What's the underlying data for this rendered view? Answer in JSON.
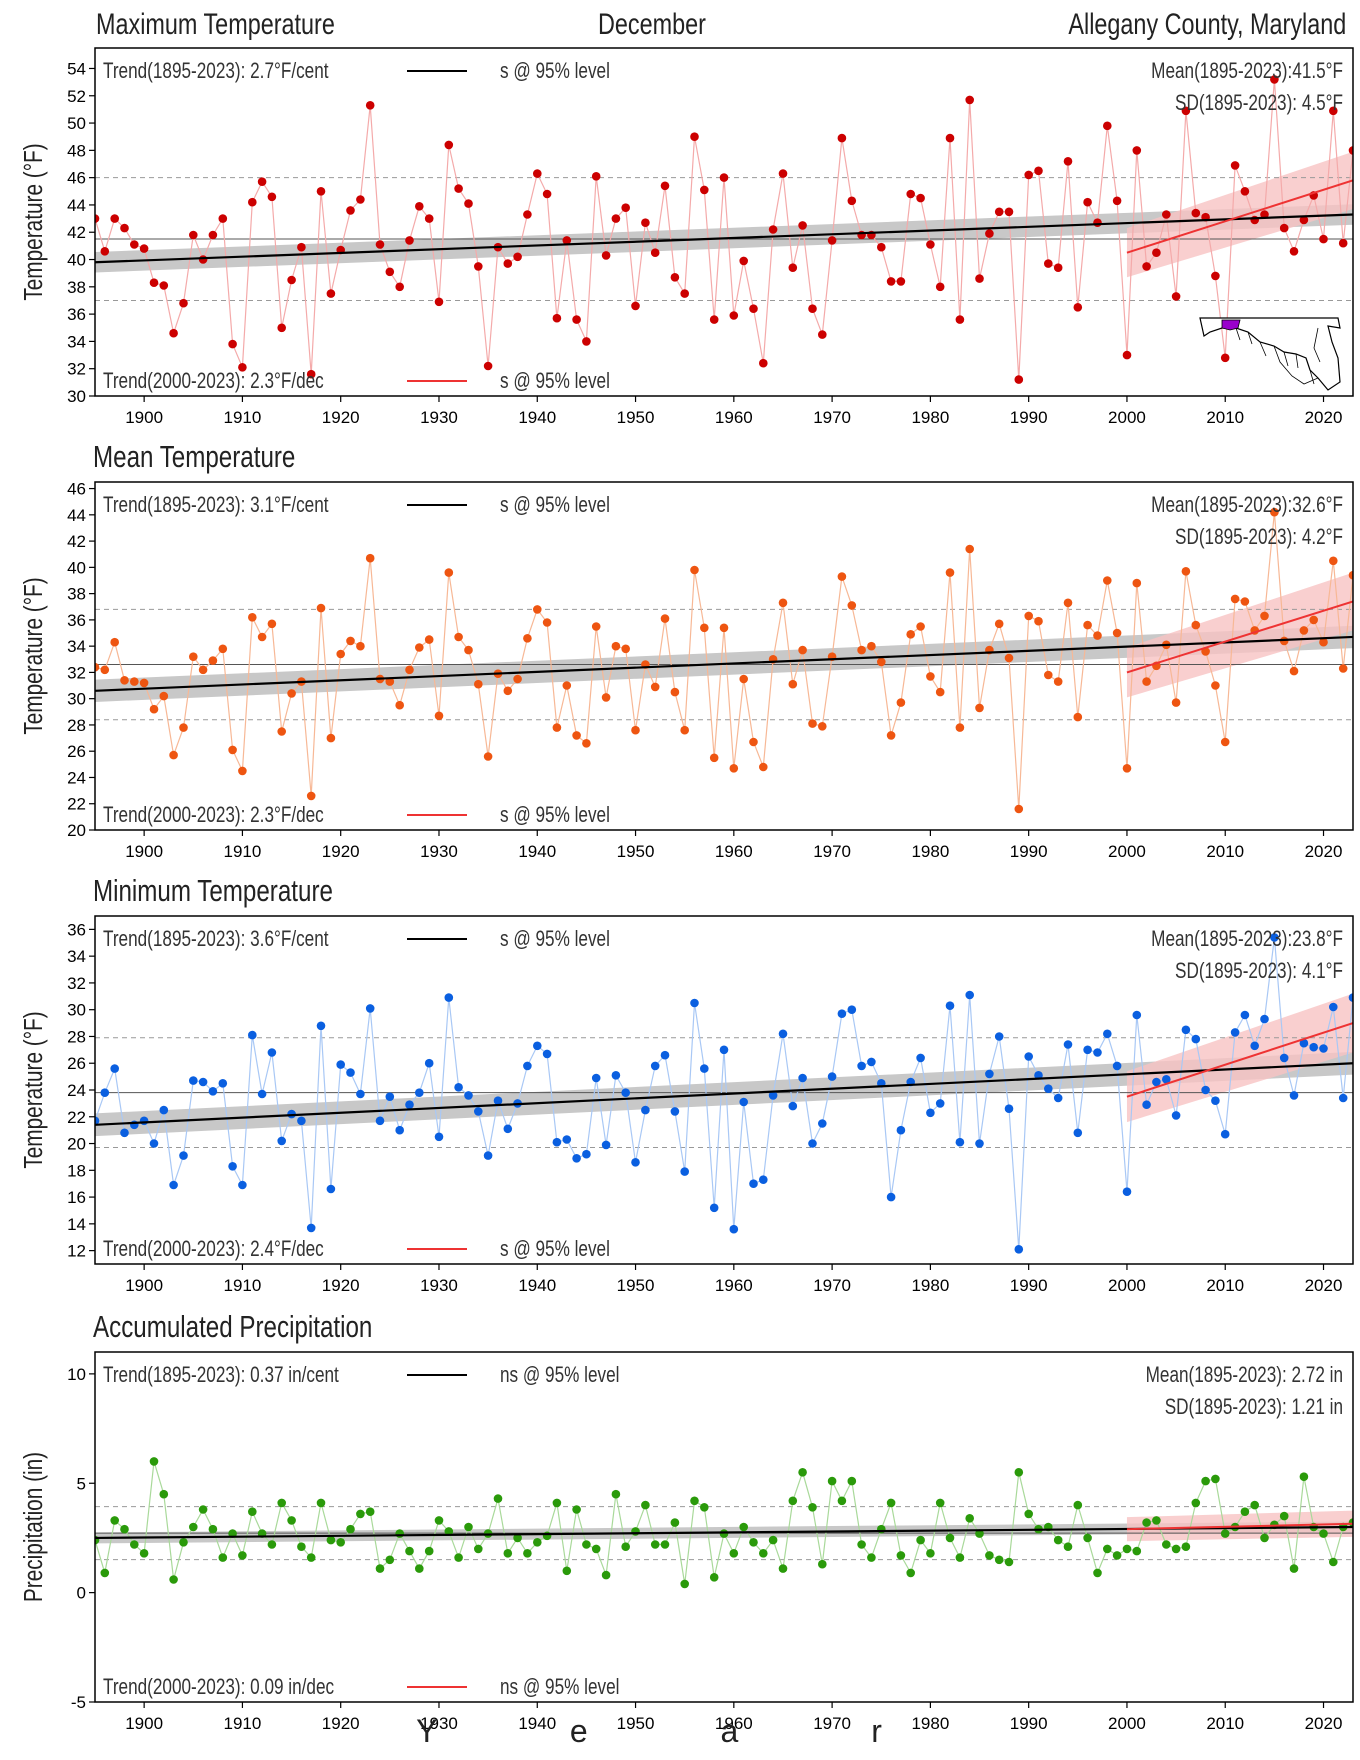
{
  "header": {
    "left": "Maximum Temperature",
    "center": "December",
    "right": "Allegany County, Maryland"
  },
  "xlabel": "Y e a r",
  "colors": {
    "max_temp": "#cc0000",
    "mean_temp": "#ee5511",
    "min_temp": "#0a5fe0",
    "precip": "#2a9a0a",
    "trend_long": "#000000",
    "trend_recent": "#ee3333",
    "band_long": "#c8c8c8",
    "band_recent": "#f7c3c3",
    "map_highlight": "#9900cc"
  },
  "chart_data": [
    {
      "type": "line",
      "title": "Maximum Temperature",
      "ylabel": "Temperature (°F)",
      "ylim": [
        30,
        55.5
      ],
      "yticks": [
        30,
        32,
        34,
        36,
        38,
        40,
        42,
        44,
        46,
        48,
        50,
        52,
        54
      ],
      "xlim": [
        1895,
        2023
      ],
      "xticks": [
        1900,
        1910,
        1920,
        1930,
        1940,
        1950,
        1960,
        1970,
        1980,
        1990,
        2000,
        2010,
        2020
      ],
      "trend_long_label": "Trend(1895-2023):  2.7°F/cent",
      "trend_long_sig": "s @ 95% level",
      "trend_recent_label": "Trend(2000-2023):  2.3°F/dec",
      "trend_recent_sig": "s @ 95% level",
      "mean_label": "Mean(1895-2023):41.5°F",
      "sd_label": "SD(1895-2023): 4.5°F",
      "mean": 41.5,
      "sd": 4.5,
      "trend_long": {
        "start": 39.8,
        "end": 43.3,
        "band": 0.75
      },
      "trend_recent": {
        "start": 40.5,
        "end": 45.8,
        "band_start": 1.8,
        "band_end": 2.1
      },
      "x_start": 1895,
      "series": [
        {
          "values": [
            43.0,
            40.6,
            43.0,
            42.3,
            41.1,
            40.8,
            38.3,
            38.1,
            34.6,
            36.8,
            41.8,
            40.0,
            41.8,
            43.0,
            33.8,
            32.1,
            44.2,
            45.7,
            44.6,
            35.0,
            38.5,
            40.9,
            31.6,
            45.0,
            37.5,
            40.7,
            43.6,
            44.4,
            51.3,
            41.1,
            39.1,
            38.0,
            41.4,
            43.9,
            43.0,
            36.9,
            48.4,
            45.2,
            44.1,
            39.5,
            32.2,
            40.9,
            39.7,
            40.2,
            43.3,
            46.3,
            44.8,
            35.7,
            41.4,
            35.6,
            34.0,
            46.1,
            40.3,
            43.0,
            43.8,
            36.6,
            42.7,
            40.5,
            45.4,
            38.7,
            37.5,
            49.0,
            45.1,
            35.6,
            46.0,
            35.9,
            39.9,
            36.4,
            32.4,
            42.2,
            46.3,
            39.4,
            42.5,
            36.4,
            34.5,
            41.4,
            48.9,
            44.3,
            41.8,
            41.8,
            40.9,
            38.4,
            38.4,
            44.8,
            44.5,
            41.1,
            38.0,
            48.9,
            35.6,
            51.7,
            38.6,
            41.9,
            43.5,
            43.5,
            31.2,
            46.2,
            46.5,
            39.7,
            39.4,
            47.2,
            36.5,
            44.2,
            42.7,
            49.8,
            44.3,
            33.0,
            48.0,
            39.5,
            40.5,
            43.3,
            37.3,
            50.9,
            43.4,
            43.1,
            38.8,
            32.8,
            46.9,
            45.0,
            42.9,
            43.3,
            53.2,
            42.3,
            40.6,
            42.9,
            44.7,
            41.5,
            50.9,
            41.2,
            48.0
          ]
        }
      ]
    },
    {
      "type": "line",
      "title": "Mean Temperature",
      "ylabel": "Temperature (°F)",
      "ylim": [
        20,
        46.5
      ],
      "yticks": [
        20,
        22,
        24,
        26,
        28,
        30,
        32,
        34,
        36,
        38,
        40,
        42,
        44,
        46
      ],
      "xlim": [
        1895,
        2023
      ],
      "xticks": [
        1900,
        1910,
        1920,
        1930,
        1940,
        1950,
        1960,
        1970,
        1980,
        1990,
        2000,
        2010,
        2020
      ],
      "trend_long_label": "Trend(1895-2023):  3.1°F/cent",
      "trend_long_sig": "s @ 95% level",
      "trend_recent_label": "Trend(2000-2023):  2.3°F/dec",
      "trend_recent_sig": "s @ 95% level",
      "mean_label": "Mean(1895-2023):32.6°F",
      "sd_label": "SD(1895-2023): 4.2°F",
      "mean": 32.6,
      "sd": 4.2,
      "trend_long": {
        "start": 30.6,
        "end": 34.7,
        "band": 0.85
      },
      "trend_recent": {
        "start": 32.0,
        "end": 37.4,
        "band_start": 1.9,
        "band_end": 2.2
      },
      "x_start": 1895,
      "series": [
        {
          "values": [
            32.4,
            32.2,
            34.3,
            31.4,
            31.3,
            31.2,
            29.2,
            30.2,
            25.7,
            27.8,
            33.2,
            32.2,
            32.9,
            33.8,
            26.1,
            24.5,
            36.2,
            34.7,
            35.7,
            27.5,
            30.4,
            31.3,
            22.6,
            36.9,
            27.0,
            33.4,
            34.4,
            34.0,
            40.7,
            31.5,
            31.3,
            29.5,
            32.2,
            33.9,
            34.5,
            28.7,
            39.6,
            34.7,
            33.7,
            31.1,
            25.6,
            31.9,
            30.6,
            31.5,
            34.6,
            36.8,
            35.8,
            27.8,
            31.0,
            27.2,
            26.6,
            35.5,
            30.1,
            34.0,
            33.8,
            27.6,
            32.6,
            30.9,
            36.1,
            30.5,
            27.6,
            39.8,
            35.4,
            25.5,
            35.4,
            24.7,
            31.5,
            26.7,
            24.8,
            33.0,
            37.3,
            31.1,
            33.7,
            28.1,
            27.9,
            33.2,
            39.3,
            37.1,
            33.7,
            34.0,
            32.8,
            27.2,
            29.7,
            34.9,
            35.5,
            31.7,
            30.5,
            39.6,
            27.8,
            41.4,
            29.3,
            33.7,
            35.7,
            33.1,
            21.6,
            36.3,
            35.9,
            31.8,
            31.3,
            37.3,
            28.6,
            35.6,
            34.8,
            39.0,
            35.0,
            24.7,
            38.8,
            31.3,
            32.5,
            34.1,
            29.7,
            39.7,
            35.6,
            33.6,
            31.0,
            26.7,
            37.6,
            37.4,
            35.2,
            36.3,
            44.2,
            34.4,
            32.1,
            35.2,
            36.0,
            34.3,
            40.5,
            32.3,
            39.4
          ]
        }
      ]
    },
    {
      "type": "line",
      "title": "Minimum Temperature",
      "ylabel": "Temperature (°F)",
      "ylim": [
        11,
        37
      ],
      "yticks": [
        12,
        14,
        16,
        18,
        20,
        22,
        24,
        26,
        28,
        30,
        32,
        34,
        36
      ],
      "xlim": [
        1895,
        2023
      ],
      "xticks": [
        1900,
        1910,
        1920,
        1930,
        1940,
        1950,
        1960,
        1970,
        1980,
        1990,
        2000,
        2010,
        2020
      ],
      "trend_long_label": "Trend(1895-2023):  3.6°F/cent",
      "trend_long_sig": "s @ 95% level",
      "trend_recent_label": "Trend(2000-2023):  2.4°F/dec",
      "trend_recent_sig": "s @ 95% level",
      "mean_label": "Mean(1895-2023):23.8°F",
      "sd_label": "SD(1895-2023): 4.1°F",
      "mean": 23.8,
      "sd": 4.1,
      "trend_long": {
        "start": 21.4,
        "end": 26.0,
        "band": 0.85
      },
      "trend_recent": {
        "start": 23.5,
        "end": 29.0,
        "band_start": 1.9,
        "band_end": 2.2
      },
      "x_start": 1895,
      "series": [
        {
          "values": [
            21.7,
            23.8,
            25.6,
            20.8,
            21.4,
            21.7,
            20.0,
            22.5,
            16.9,
            19.1,
            24.7,
            24.6,
            23.9,
            24.5,
            18.3,
            16.9,
            28.1,
            23.7,
            26.8,
            20.2,
            22.2,
            21.7,
            13.7,
            28.8,
            16.6,
            25.9,
            25.3,
            23.7,
            30.1,
            21.7,
            23.5,
            21.0,
            22.9,
            23.8,
            26.0,
            20.5,
            30.9,
            24.2,
            23.6,
            22.4,
            19.1,
            23.2,
            21.1,
            23.0,
            25.8,
            27.3,
            26.7,
            20.1,
            20.3,
            18.9,
            19.2,
            24.9,
            19.9,
            25.1,
            23.8,
            18.6,
            22.5,
            25.8,
            26.6,
            22.4,
            17.9,
            30.5,
            25.6,
            15.2,
            27.0,
            13.6,
            23.1,
            17.0,
            17.3,
            23.6,
            28.2,
            22.8,
            24.9,
            20.0,
            21.5,
            25.0,
            29.7,
            30.0,
            25.8,
            26.1,
            24.5,
            16.0,
            21.0,
            24.6,
            26.4,
            22.3,
            23.0,
            30.3,
            20.1,
            31.1,
            20.0,
            25.2,
            28.0,
            22.6,
            12.1,
            26.5,
            25.1,
            24.1,
            23.4,
            27.4,
            20.8,
            27.0,
            26.8,
            28.2,
            25.8,
            16.4,
            29.6,
            22.9,
            24.6,
            24.8,
            22.1,
            28.5,
            27.8,
            24.0,
            23.2,
            20.7,
            28.3,
            29.6,
            27.3,
            29.3,
            35.4,
            26.4,
            23.6,
            27.5,
            27.2,
            27.1,
            30.2,
            23.4,
            30.9
          ]
        }
      ]
    },
    {
      "type": "line",
      "title": "Accumulated Precipitation",
      "ylabel": "Precipitation (in)",
      "ylim": [
        -5,
        11
      ],
      "yticks": [
        -5,
        0,
        5,
        10
      ],
      "xlim": [
        1895,
        2023
      ],
      "xticks": [
        1900,
        1910,
        1920,
        1930,
        1940,
        1950,
        1960,
        1970,
        1980,
        1990,
        2000,
        2010,
        2020
      ],
      "trend_long_label": "Trend(1895-2023):  0.37 in/cent",
      "trend_long_sig": "ns @ 95% level",
      "trend_recent_label": "Trend(2000-2023):  0.09 in/dec",
      "trend_recent_sig": "ns @ 95% level",
      "mean_label": "Mean(1895-2023): 2.72 in",
      "sd_label": "SD(1895-2023): 1.21 in",
      "mean": 2.72,
      "sd": 1.21,
      "trend_long": {
        "start": 2.5,
        "end": 3.0,
        "band": 0.25
      },
      "trend_recent": {
        "start": 2.9,
        "end": 3.15,
        "band_start": 0.55,
        "band_end": 0.6
      },
      "x_start": 1895,
      "series": [
        {
          "values": [
            2.4,
            0.9,
            3.3,
            2.9,
            2.2,
            1.8,
            6.0,
            4.5,
            0.6,
            2.3,
            3.0,
            3.8,
            2.9,
            1.6,
            2.7,
            1.7,
            3.7,
            2.7,
            2.2,
            4.1,
            3.3,
            2.1,
            1.6,
            4.1,
            2.4,
            2.3,
            2.9,
            3.6,
            3.7,
            1.1,
            1.5,
            2.7,
            1.9,
            1.1,
            1.9,
            3.3,
            2.8,
            1.6,
            3.0,
            2.0,
            2.7,
            4.3,
            1.8,
            2.5,
            1.8,
            2.3,
            2.6,
            4.1,
            1.0,
            3.8,
            2.2,
            2.0,
            0.8,
            4.5,
            2.1,
            2.8,
            4.0,
            2.2,
            2.2,
            3.2,
            0.4,
            4.2,
            3.9,
            0.7,
            2.7,
            1.8,
            3.0,
            2.3,
            1.8,
            2.4,
            1.1,
            4.2,
            5.5,
            3.9,
            1.3,
            5.1,
            4.2,
            5.1,
            2.2,
            1.6,
            2.9,
            4.1,
            1.7,
            0.9,
            2.4,
            1.8,
            4.1,
            2.5,
            1.6,
            3.4,
            2.7,
            1.7,
            1.5,
            1.4,
            5.5,
            3.6,
            2.9,
            3.0,
            2.4,
            2.1,
            4.0,
            2.5,
            0.9,
            2.0,
            1.7,
            2.0,
            1.9,
            3.2,
            3.3,
            2.2,
            2.0,
            2.1,
            4.1,
            5.1,
            5.2,
            2.7,
            3.0,
            3.7,
            4.0,
            2.5,
            3.1,
            3.5,
            1.1,
            5.3,
            3.0,
            2.7,
            1.4,
            3.0,
            3.2
          ]
        }
      ]
    }
  ]
}
